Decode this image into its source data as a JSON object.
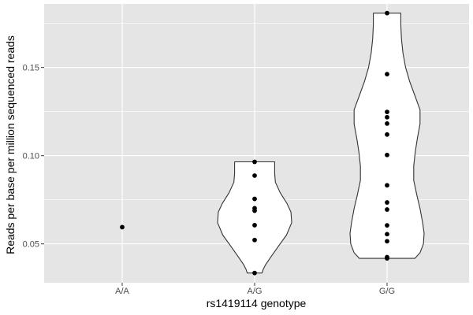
{
  "chart_data": {
    "type": "violin",
    "title": "",
    "xlabel": "rs1419114 genotype",
    "ylabel": "Reads per base per million sequenced reads",
    "categories": [
      "A/A",
      "A/G",
      "G/G"
    ],
    "ylim": [
      0.028,
      0.186
    ],
    "yticks": [
      0.05,
      0.1,
      0.15
    ],
    "ytick_labels": [
      "0.05",
      "0.10",
      "0.15"
    ],
    "grid": true,
    "legend": "none",
    "groups": [
      {
        "category": "A/A",
        "points": [
          0.0595
        ],
        "violin": null
      },
      {
        "category": "A/G",
        "points": [
          0.0335,
          0.0522,
          0.0606,
          0.0688,
          0.0702,
          0.0755,
          0.0887,
          0.0965
        ],
        "violin": {
          "y": [
            0.0335,
            0.0355,
            0.038,
            0.042,
            0.048,
            0.055,
            0.062,
            0.068,
            0.073,
            0.079,
            0.085,
            0.09,
            0.094,
            0.0965
          ],
          "halfwidth": [
            0.2,
            0.23,
            0.29,
            0.42,
            0.62,
            0.86,
            1.0,
            0.98,
            0.87,
            0.69,
            0.56,
            0.54,
            0.54,
            0.54
          ]
        }
      },
      {
        "category": "G/G",
        "points": [
          0.0418,
          0.0425,
          0.0515,
          0.0555,
          0.0605,
          0.0695,
          0.0735,
          0.0832,
          0.1004,
          0.112,
          0.1182,
          0.1218,
          0.1248,
          0.1462,
          0.1808
        ],
        "violin": {
          "y": [
            0.0418,
            0.045,
            0.05,
            0.056,
            0.062,
            0.07,
            0.078,
            0.086,
            0.094,
            0.102,
            0.11,
            0.118,
            0.126,
            0.134,
            0.142,
            0.15,
            0.158,
            0.166,
            0.174,
            0.1808
          ],
          "halfwidth": [
            0.75,
            0.89,
            0.98,
            1.0,
            0.96,
            0.89,
            0.8,
            0.72,
            0.72,
            0.76,
            0.82,
            0.89,
            0.89,
            0.75,
            0.61,
            0.5,
            0.43,
            0.39,
            0.37,
            0.37
          ]
        }
      }
    ],
    "colors": {
      "panel": "#e5e5e5",
      "grid": "#ffffff",
      "violin_fill": "#ffffff",
      "violin_line": "#333333",
      "point": "#000000"
    }
  }
}
